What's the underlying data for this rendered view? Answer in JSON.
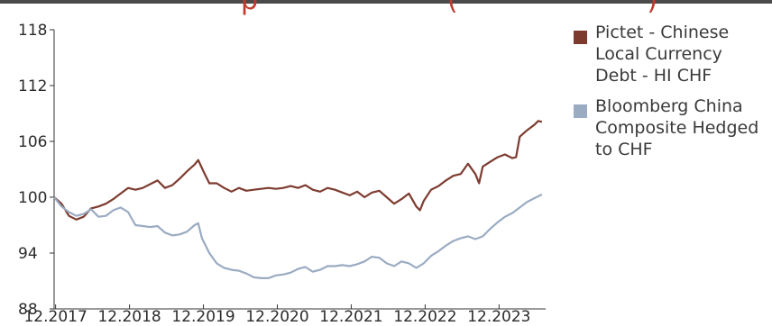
{
  "title_fragment": "                            p                      (                      )",
  "chart_data": {
    "type": "line",
    "ylim": [
      88,
      118
    ],
    "yticks": [
      88,
      94,
      100,
      106,
      112,
      118
    ],
    "xlim": [
      2017.9,
      2024.55
    ],
    "xticks": [
      {
        "x": 2017.92,
        "label": "12.2017"
      },
      {
        "x": 2018.92,
        "label": "12.2018"
      },
      {
        "x": 2019.92,
        "label": "12.2019"
      },
      {
        "x": 2020.92,
        "label": "12.2020"
      },
      {
        "x": 2021.92,
        "label": "12.2021"
      },
      {
        "x": 2022.92,
        "label": "12.2022"
      },
      {
        "x": 2023.92,
        "label": "12.2023"
      }
    ],
    "series": [
      {
        "name": "Pictet - Chinese Local Currency Debt - HI CHF",
        "color": "#7d3b2f",
        "points": [
          [
            2017.9,
            100.0
          ],
          [
            2018.0,
            99.3
          ],
          [
            2018.1,
            98.0
          ],
          [
            2018.2,
            97.6
          ],
          [
            2018.3,
            97.9
          ],
          [
            2018.4,
            98.8
          ],
          [
            2018.5,
            99.0
          ],
          [
            2018.6,
            99.3
          ],
          [
            2018.7,
            99.8
          ],
          [
            2018.8,
            100.4
          ],
          [
            2018.9,
            101.0
          ],
          [
            2019.0,
            100.8
          ],
          [
            2019.1,
            101.0
          ],
          [
            2019.2,
            101.4
          ],
          [
            2019.3,
            101.8
          ],
          [
            2019.4,
            101.0
          ],
          [
            2019.5,
            101.3
          ],
          [
            2019.6,
            102.0
          ],
          [
            2019.7,
            102.8
          ],
          [
            2019.8,
            103.5
          ],
          [
            2019.85,
            104.0
          ],
          [
            2019.92,
            102.8
          ],
          [
            2020.0,
            101.5
          ],
          [
            2020.1,
            101.5
          ],
          [
            2020.2,
            101.0
          ],
          [
            2020.3,
            100.6
          ],
          [
            2020.4,
            101.0
          ],
          [
            2020.5,
            100.7
          ],
          [
            2020.6,
            100.8
          ],
          [
            2020.7,
            100.9
          ],
          [
            2020.8,
            101.0
          ],
          [
            2020.9,
            100.9
          ],
          [
            2021.0,
            101.0
          ],
          [
            2021.1,
            101.2
          ],
          [
            2021.2,
            101.0
          ],
          [
            2021.3,
            101.3
          ],
          [
            2021.4,
            100.8
          ],
          [
            2021.5,
            100.6
          ],
          [
            2021.6,
            101.0
          ],
          [
            2021.7,
            100.8
          ],
          [
            2021.8,
            100.5
          ],
          [
            2021.9,
            100.2
          ],
          [
            2022.0,
            100.6
          ],
          [
            2022.1,
            100.0
          ],
          [
            2022.2,
            100.5
          ],
          [
            2022.3,
            100.7
          ],
          [
            2022.4,
            100.0
          ],
          [
            2022.5,
            99.3
          ],
          [
            2022.6,
            99.8
          ],
          [
            2022.7,
            100.4
          ],
          [
            2022.8,
            99.0
          ],
          [
            2022.85,
            98.6
          ],
          [
            2022.9,
            99.6
          ],
          [
            2023.0,
            100.8
          ],
          [
            2023.1,
            101.2
          ],
          [
            2023.2,
            101.8
          ],
          [
            2023.3,
            102.3
          ],
          [
            2023.4,
            102.5
          ],
          [
            2023.5,
            103.6
          ],
          [
            2023.6,
            102.5
          ],
          [
            2023.65,
            101.5
          ],
          [
            2023.7,
            103.3
          ],
          [
            2023.8,
            103.8
          ],
          [
            2023.9,
            104.3
          ],
          [
            2024.0,
            104.6
          ],
          [
            2024.1,
            104.2
          ],
          [
            2024.15,
            104.3
          ],
          [
            2024.2,
            106.5
          ],
          [
            2024.3,
            107.2
          ],
          [
            2024.4,
            107.8
          ],
          [
            2024.45,
            108.2
          ],
          [
            2024.5,
            108.1
          ]
        ]
      },
      {
        "name": "Bloomberg China Composite Hedged to CHF",
        "color": "#9aabc2",
        "points": [
          [
            2017.9,
            100.0
          ],
          [
            2018.0,
            99.0
          ],
          [
            2018.1,
            98.4
          ],
          [
            2018.2,
            98.0
          ],
          [
            2018.3,
            98.2
          ],
          [
            2018.4,
            98.7
          ],
          [
            2018.5,
            97.9
          ],
          [
            2018.6,
            98.0
          ],
          [
            2018.7,
            98.6
          ],
          [
            2018.8,
            98.9
          ],
          [
            2018.9,
            98.4
          ],
          [
            2019.0,
            97.0
          ],
          [
            2019.1,
            96.9
          ],
          [
            2019.2,
            96.8
          ],
          [
            2019.3,
            96.9
          ],
          [
            2019.4,
            96.2
          ],
          [
            2019.5,
            95.9
          ],
          [
            2019.6,
            96.0
          ],
          [
            2019.7,
            96.3
          ],
          [
            2019.8,
            97.0
          ],
          [
            2019.85,
            97.2
          ],
          [
            2019.9,
            95.6
          ],
          [
            2020.0,
            94.0
          ],
          [
            2020.1,
            92.9
          ],
          [
            2020.2,
            92.4
          ],
          [
            2020.3,
            92.2
          ],
          [
            2020.4,
            92.1
          ],
          [
            2020.5,
            91.8
          ],
          [
            2020.6,
            91.4
          ],
          [
            2020.7,
            91.3
          ],
          [
            2020.8,
            91.3
          ],
          [
            2020.9,
            91.6
          ],
          [
            2021.0,
            91.7
          ],
          [
            2021.1,
            91.9
          ],
          [
            2021.2,
            92.3
          ],
          [
            2021.3,
            92.5
          ],
          [
            2021.4,
            92.0
          ],
          [
            2021.5,
            92.2
          ],
          [
            2021.6,
            92.6
          ],
          [
            2021.7,
            92.6
          ],
          [
            2021.8,
            92.7
          ],
          [
            2021.9,
            92.6
          ],
          [
            2022.0,
            92.8
          ],
          [
            2022.1,
            93.1
          ],
          [
            2022.2,
            93.6
          ],
          [
            2022.3,
            93.5
          ],
          [
            2022.4,
            92.9
          ],
          [
            2022.5,
            92.6
          ],
          [
            2022.6,
            93.1
          ],
          [
            2022.7,
            92.9
          ],
          [
            2022.8,
            92.4
          ],
          [
            2022.9,
            92.9
          ],
          [
            2023.0,
            93.7
          ],
          [
            2023.1,
            94.2
          ],
          [
            2023.2,
            94.8
          ],
          [
            2023.3,
            95.3
          ],
          [
            2023.4,
            95.6
          ],
          [
            2023.5,
            95.8
          ],
          [
            2023.6,
            95.5
          ],
          [
            2023.7,
            95.8
          ],
          [
            2023.8,
            96.6
          ],
          [
            2023.9,
            97.3
          ],
          [
            2024.0,
            97.9
          ],
          [
            2024.1,
            98.3
          ],
          [
            2024.2,
            98.9
          ],
          [
            2024.3,
            99.5
          ],
          [
            2024.4,
            99.9
          ],
          [
            2024.45,
            100.1
          ],
          [
            2024.5,
            100.3
          ]
        ]
      }
    ]
  }
}
